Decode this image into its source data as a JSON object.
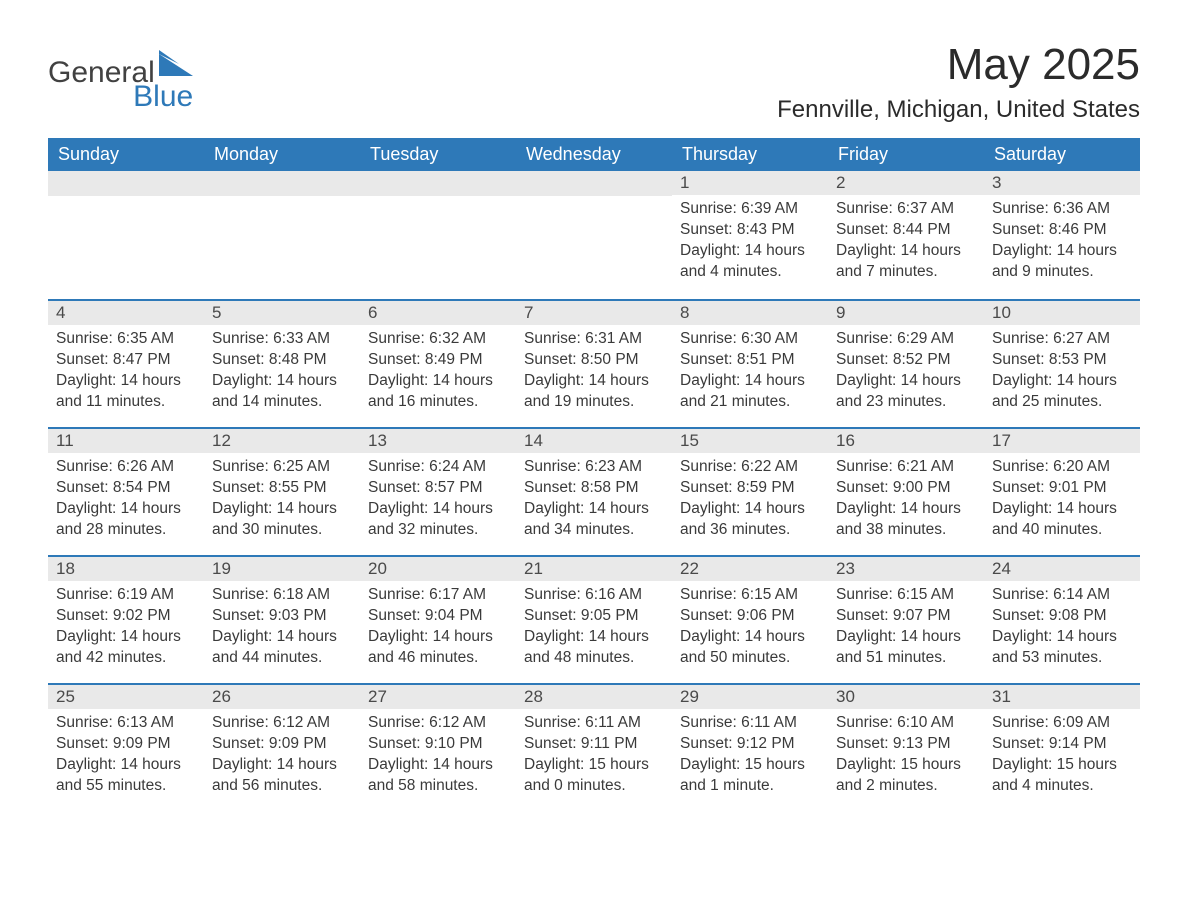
{
  "brand": {
    "part1": "General",
    "part2": "Blue",
    "logo_color": "#2e79b8",
    "text_color": "#414141"
  },
  "title": "May 2025",
  "location": "Fennville, Michigan, United States",
  "colors": {
    "header_bg": "#2e79b8",
    "header_text": "#ffffff",
    "daynum_bg": "#e9e9e9",
    "border": "#2e79b8",
    "body_text": "#3a3a3a"
  },
  "days_of_week": [
    "Sunday",
    "Monday",
    "Tuesday",
    "Wednesday",
    "Thursday",
    "Friday",
    "Saturday"
  ],
  "weeks": [
    [
      {
        "n": "",
        "sunrise": "",
        "sunset": "",
        "daylight": ""
      },
      {
        "n": "",
        "sunrise": "",
        "sunset": "",
        "daylight": ""
      },
      {
        "n": "",
        "sunrise": "",
        "sunset": "",
        "daylight": ""
      },
      {
        "n": "",
        "sunrise": "",
        "sunset": "",
        "daylight": ""
      },
      {
        "n": "1",
        "sunrise": "Sunrise: 6:39 AM",
        "sunset": "Sunset: 8:43 PM",
        "daylight": "Daylight: 14 hours and 4 minutes."
      },
      {
        "n": "2",
        "sunrise": "Sunrise: 6:37 AM",
        "sunset": "Sunset: 8:44 PM",
        "daylight": "Daylight: 14 hours and 7 minutes."
      },
      {
        "n": "3",
        "sunrise": "Sunrise: 6:36 AM",
        "sunset": "Sunset: 8:46 PM",
        "daylight": "Daylight: 14 hours and 9 minutes."
      }
    ],
    [
      {
        "n": "4",
        "sunrise": "Sunrise: 6:35 AM",
        "sunset": "Sunset: 8:47 PM",
        "daylight": "Daylight: 14 hours and 11 minutes."
      },
      {
        "n": "5",
        "sunrise": "Sunrise: 6:33 AM",
        "sunset": "Sunset: 8:48 PM",
        "daylight": "Daylight: 14 hours and 14 minutes."
      },
      {
        "n": "6",
        "sunrise": "Sunrise: 6:32 AM",
        "sunset": "Sunset: 8:49 PM",
        "daylight": "Daylight: 14 hours and 16 minutes."
      },
      {
        "n": "7",
        "sunrise": "Sunrise: 6:31 AM",
        "sunset": "Sunset: 8:50 PM",
        "daylight": "Daylight: 14 hours and 19 minutes."
      },
      {
        "n": "8",
        "sunrise": "Sunrise: 6:30 AM",
        "sunset": "Sunset: 8:51 PM",
        "daylight": "Daylight: 14 hours and 21 minutes."
      },
      {
        "n": "9",
        "sunrise": "Sunrise: 6:29 AM",
        "sunset": "Sunset: 8:52 PM",
        "daylight": "Daylight: 14 hours and 23 minutes."
      },
      {
        "n": "10",
        "sunrise": "Sunrise: 6:27 AM",
        "sunset": "Sunset: 8:53 PM",
        "daylight": "Daylight: 14 hours and 25 minutes."
      }
    ],
    [
      {
        "n": "11",
        "sunrise": "Sunrise: 6:26 AM",
        "sunset": "Sunset: 8:54 PM",
        "daylight": "Daylight: 14 hours and 28 minutes."
      },
      {
        "n": "12",
        "sunrise": "Sunrise: 6:25 AM",
        "sunset": "Sunset: 8:55 PM",
        "daylight": "Daylight: 14 hours and 30 minutes."
      },
      {
        "n": "13",
        "sunrise": "Sunrise: 6:24 AM",
        "sunset": "Sunset: 8:57 PM",
        "daylight": "Daylight: 14 hours and 32 minutes."
      },
      {
        "n": "14",
        "sunrise": "Sunrise: 6:23 AM",
        "sunset": "Sunset: 8:58 PM",
        "daylight": "Daylight: 14 hours and 34 minutes."
      },
      {
        "n": "15",
        "sunrise": "Sunrise: 6:22 AM",
        "sunset": "Sunset: 8:59 PM",
        "daylight": "Daylight: 14 hours and 36 minutes."
      },
      {
        "n": "16",
        "sunrise": "Sunrise: 6:21 AM",
        "sunset": "Sunset: 9:00 PM",
        "daylight": "Daylight: 14 hours and 38 minutes."
      },
      {
        "n": "17",
        "sunrise": "Sunrise: 6:20 AM",
        "sunset": "Sunset: 9:01 PM",
        "daylight": "Daylight: 14 hours and 40 minutes."
      }
    ],
    [
      {
        "n": "18",
        "sunrise": "Sunrise: 6:19 AM",
        "sunset": "Sunset: 9:02 PM",
        "daylight": "Daylight: 14 hours and 42 minutes."
      },
      {
        "n": "19",
        "sunrise": "Sunrise: 6:18 AM",
        "sunset": "Sunset: 9:03 PM",
        "daylight": "Daylight: 14 hours and 44 minutes."
      },
      {
        "n": "20",
        "sunrise": "Sunrise: 6:17 AM",
        "sunset": "Sunset: 9:04 PM",
        "daylight": "Daylight: 14 hours and 46 minutes."
      },
      {
        "n": "21",
        "sunrise": "Sunrise: 6:16 AM",
        "sunset": "Sunset: 9:05 PM",
        "daylight": "Daylight: 14 hours and 48 minutes."
      },
      {
        "n": "22",
        "sunrise": "Sunrise: 6:15 AM",
        "sunset": "Sunset: 9:06 PM",
        "daylight": "Daylight: 14 hours and 50 minutes."
      },
      {
        "n": "23",
        "sunrise": "Sunrise: 6:15 AM",
        "sunset": "Sunset: 9:07 PM",
        "daylight": "Daylight: 14 hours and 51 minutes."
      },
      {
        "n": "24",
        "sunrise": "Sunrise: 6:14 AM",
        "sunset": "Sunset: 9:08 PM",
        "daylight": "Daylight: 14 hours and 53 minutes."
      }
    ],
    [
      {
        "n": "25",
        "sunrise": "Sunrise: 6:13 AM",
        "sunset": "Sunset: 9:09 PM",
        "daylight": "Daylight: 14 hours and 55 minutes."
      },
      {
        "n": "26",
        "sunrise": "Sunrise: 6:12 AM",
        "sunset": "Sunset: 9:09 PM",
        "daylight": "Daylight: 14 hours and 56 minutes."
      },
      {
        "n": "27",
        "sunrise": "Sunrise: 6:12 AM",
        "sunset": "Sunset: 9:10 PM",
        "daylight": "Daylight: 14 hours and 58 minutes."
      },
      {
        "n": "28",
        "sunrise": "Sunrise: 6:11 AM",
        "sunset": "Sunset: 9:11 PM",
        "daylight": "Daylight: 15 hours and 0 minutes."
      },
      {
        "n": "29",
        "sunrise": "Sunrise: 6:11 AM",
        "sunset": "Sunset: 9:12 PM",
        "daylight": "Daylight: 15 hours and 1 minute."
      },
      {
        "n": "30",
        "sunrise": "Sunrise: 6:10 AM",
        "sunset": "Sunset: 9:13 PM",
        "daylight": "Daylight: 15 hours and 2 minutes."
      },
      {
        "n": "31",
        "sunrise": "Sunrise: 6:09 AM",
        "sunset": "Sunset: 9:14 PM",
        "daylight": "Daylight: 15 hours and 4 minutes."
      }
    ]
  ]
}
